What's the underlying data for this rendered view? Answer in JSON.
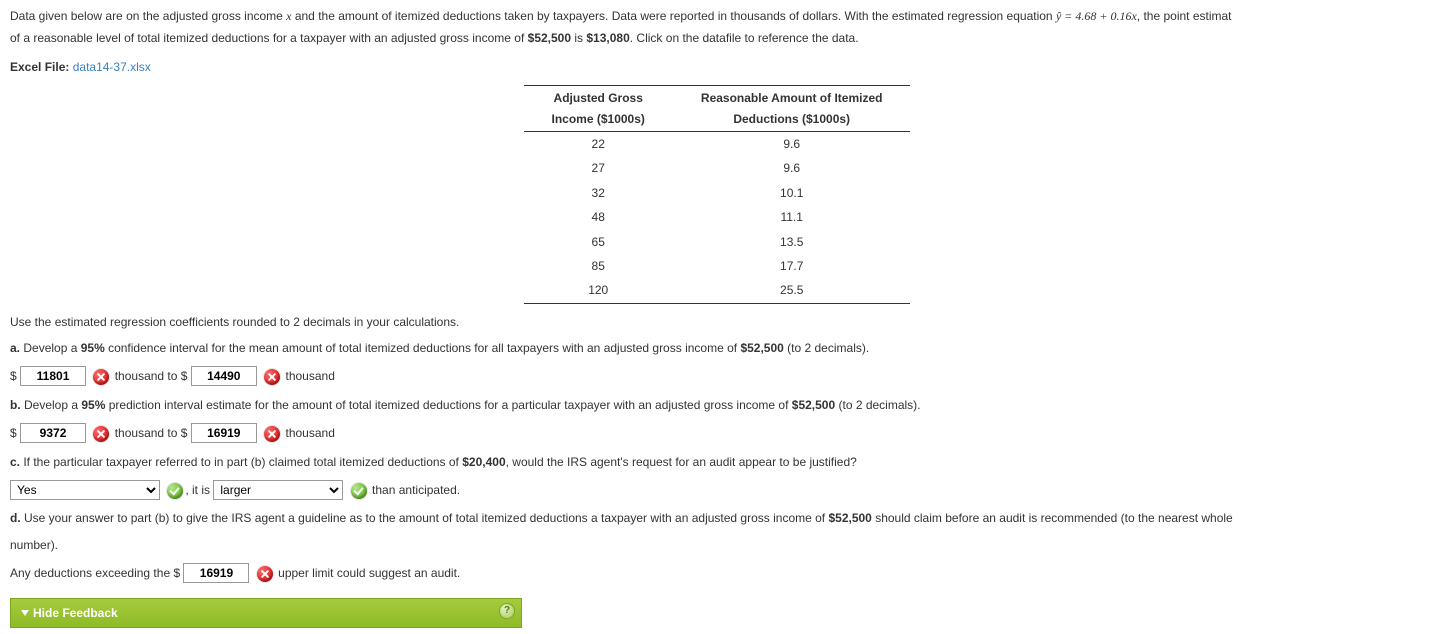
{
  "intro": {
    "line1_pre": "Data given below are on the adjusted gross income ",
    "x_var": "x",
    "line1_mid": " and the amount of itemized deductions taken by taxpayers. Data were reported in thousands of dollars. With the estimated regression equation ",
    "eq_lhs": "ŷ",
    "eq_rhs": " = 4.68 + 0.16x",
    "line1_post": ", the point estimat",
    "line2": "of a reasonable level of total itemized deductions for a taxpayer with an adjusted gross income of ",
    "agi": "$52,500",
    "line2_mid": " is ",
    "point_est": "$13,080",
    "line2_end": ". Click on the datafile to reference the data."
  },
  "file": {
    "label": "Excel File:",
    "link": "data14-37.xlsx"
  },
  "table": {
    "h1a": "Adjusted Gross",
    "h1b": "Income ($1000s)",
    "h2a": "Reasonable Amount of Itemized",
    "h2b": "Deductions ($1000s)",
    "rows": [
      {
        "x": "22",
        "y": "9.6"
      },
      {
        "x": "27",
        "y": "9.6"
      },
      {
        "x": "32",
        "y": "10.1"
      },
      {
        "x": "48",
        "y": "11.1"
      },
      {
        "x": "65",
        "y": "13.5"
      },
      {
        "x": "85",
        "y": "17.7"
      },
      {
        "x": "120",
        "y": "25.5"
      }
    ]
  },
  "note": "Use the estimated regression coefficients rounded to 2 decimals in your calculations.",
  "a": {
    "label": "a.",
    "text_pre": " Develop a ",
    "pct": "95%",
    "text_mid": " confidence interval for the mean amount of total itemized deductions for all taxpayers with an adjusted gross income of ",
    "agi": "$52,500",
    "text_end": " (to 2 decimals).",
    "lo": "11801",
    "hi": "14490",
    "unit1": "thousand to $",
    "unit2": "thousand"
  },
  "b": {
    "label": "b.",
    "text_pre": " Develop a ",
    "pct": "95%",
    "text_mid": " prediction interval estimate for the amount of total itemized deductions for a particular taxpayer with an adjusted gross income of ",
    "agi": "$52,500",
    "text_end": " (to 2 decimals).",
    "lo": "9372",
    "hi": "16919",
    "unit1": "thousand to $",
    "unit2": "thousand"
  },
  "c": {
    "label": "c.",
    "text_pre": " If the particular taxpayer referred to in part (b) claimed total itemized deductions of ",
    "amount": "$20,400",
    "text_end": ", would the IRS agent's request for an audit appear to be justified?",
    "sel1": "Yes",
    "mid": ", it is",
    "sel2": "larger",
    "tail": "than anticipated."
  },
  "d": {
    "label": "d.",
    "text": " Use your answer to part (b) to give the IRS agent a guideline as to the amount of total itemized deductions a taxpayer with an adjusted gross income of ",
    "agi": "$52,500",
    "text_end": " should claim before an audit is recommended (to the nearest whole",
    "text_end2": "number).",
    "line_pre": "Any deductions exceeding the $",
    "val": "16919",
    "line_post": "upper limit could suggest an audit."
  },
  "feedback": {
    "label": "Hide Feedback"
  },
  "dollar": "$"
}
